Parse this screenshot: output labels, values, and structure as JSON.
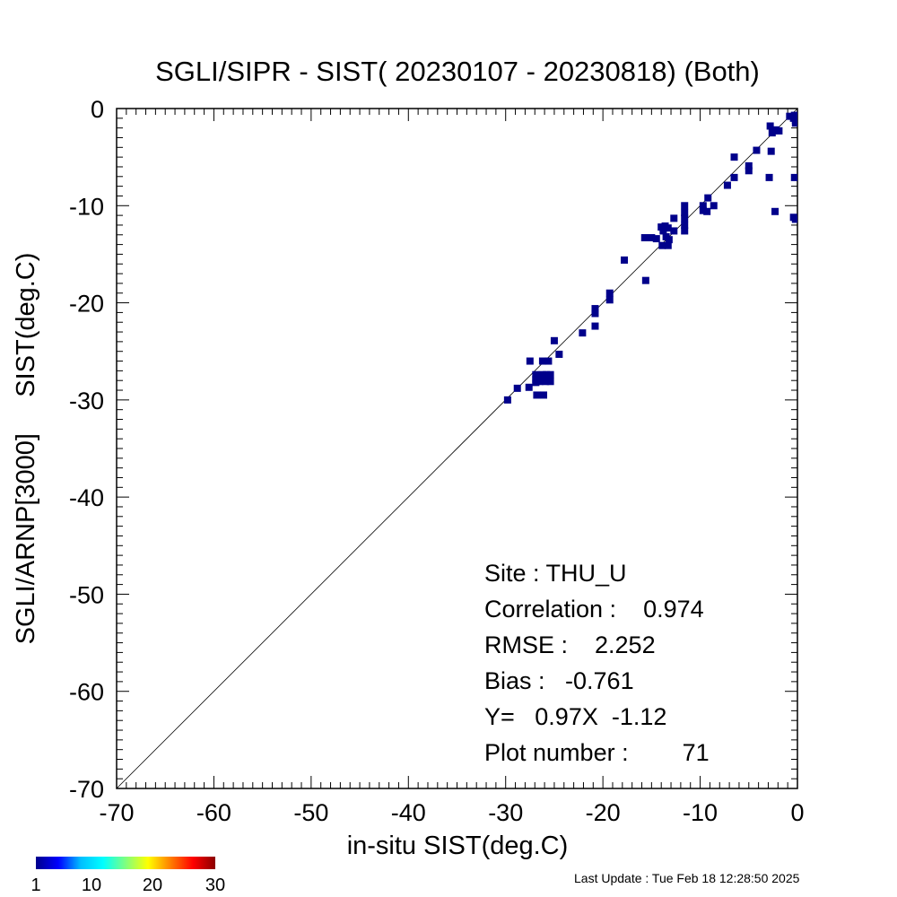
{
  "chart_data": {
    "type": "scatter",
    "title": "SGLI/SIPR - SIST( 20230107 - 20230818) (Both)",
    "xlabel": "in-situ SIST(deg.C)",
    "ylabel": "SGLI/ARNP[3000]     SIST(deg.C)",
    "xlim": [
      -70,
      0
    ],
    "ylim": [
      -70,
      0
    ],
    "x_ticks": [
      -70,
      -60,
      -50,
      -40,
      -30,
      -20,
      -10,
      0
    ],
    "y_ticks": [
      0,
      -10,
      -20,
      -30,
      -40,
      -50,
      -60,
      -70
    ],
    "x_tick_labels": [
      "-70",
      "-60",
      "-50",
      "-40",
      "-30",
      "-20",
      "-10",
      "0"
    ],
    "y_tick_labels": [
      "0",
      "-10",
      "-20",
      "-30",
      "-40",
      "-50",
      "-60",
      "-70"
    ],
    "grid": false,
    "reference_line": "y = x",
    "point_color": "#00008b",
    "points": [
      {
        "x": -29.8,
        "y": -30.0
      },
      {
        "x": -28.8,
        "y": -28.8
      },
      {
        "x": -27.6,
        "y": -28.7
      },
      {
        "x": -27.5,
        "y": -26.0
      },
      {
        "x": -26.9,
        "y": -27.4
      },
      {
        "x": -26.9,
        "y": -28.2
      },
      {
        "x": -26.8,
        "y": -29.5
      },
      {
        "x": -26.5,
        "y": -28.1
      },
      {
        "x": -26.2,
        "y": -26.0
      },
      {
        "x": -26.1,
        "y": -29.5
      },
      {
        "x": -25.9,
        "y": -28.1
      },
      {
        "x": -25.8,
        "y": -27.4
      },
      {
        "x": -25.6,
        "y": -26.0
      },
      {
        "x": -25.4,
        "y": -27.4
      },
      {
        "x": -25.4,
        "y": -28.1
      },
      {
        "x": -25.0,
        "y": -23.9
      },
      {
        "x": -24.5,
        "y": -25.3
      },
      {
        "x": -22.1,
        "y": -23.1
      },
      {
        "x": -20.8,
        "y": -20.6
      },
      {
        "x": -20.8,
        "y": -21.1
      },
      {
        "x": -20.8,
        "y": -22.4
      },
      {
        "x": -19.3,
        "y": -19.0
      },
      {
        "x": -19.3,
        "y": -19.7
      },
      {
        "x": -17.8,
        "y": -15.6
      },
      {
        "x": -15.7,
        "y": -13.3
      },
      {
        "x": -15.6,
        "y": -17.7
      },
      {
        "x": -15.0,
        "y": -13.3
      },
      {
        "x": -14.5,
        "y": -13.4
      },
      {
        "x": -14.0,
        "y": -12.2
      },
      {
        "x": -13.9,
        "y": -14.1
      },
      {
        "x": -13.6,
        "y": -12.1
      },
      {
        "x": -13.5,
        "y": -13.2
      },
      {
        "x": -13.3,
        "y": -14.1
      },
      {
        "x": -13.3,
        "y": -12.3
      },
      {
        "x": -13.2,
        "y": -13.5
      },
      {
        "x": -12.7,
        "y": -11.3
      },
      {
        "x": -12.7,
        "y": -12.6
      },
      {
        "x": -11.6,
        "y": -10.0
      },
      {
        "x": -11.6,
        "y": -10.7
      },
      {
        "x": -11.6,
        "y": -11.3
      },
      {
        "x": -11.6,
        "y": -12.0
      },
      {
        "x": -11.6,
        "y": -12.6
      },
      {
        "x": -9.7,
        "y": -10.5
      },
      {
        "x": -9.7,
        "y": -10.0
      },
      {
        "x": -9.3,
        "y": -10.6
      },
      {
        "x": -9.2,
        "y": -9.2
      },
      {
        "x": -8.6,
        "y": -10.0
      },
      {
        "x": -7.2,
        "y": -7.9
      },
      {
        "x": -6.5,
        "y": -7.1
      },
      {
        "x": -6.5,
        "y": -5.0
      },
      {
        "x": -5.0,
        "y": -5.9
      },
      {
        "x": -5.0,
        "y": -6.4
      },
      {
        "x": -4.2,
        "y": -4.3
      },
      {
        "x": -2.9,
        "y": -7.1
      },
      {
        "x": -2.8,
        "y": -1.8
      },
      {
        "x": -2.7,
        "y": -4.4
      },
      {
        "x": -2.6,
        "y": -2.5
      },
      {
        "x": -2.3,
        "y": -10.6
      },
      {
        "x": -2.2,
        "y": -2.2
      },
      {
        "x": -1.9,
        "y": -2.3
      },
      {
        "x": -0.8,
        "y": -0.8
      },
      {
        "x": -0.4,
        "y": -11.2
      },
      {
        "x": -0.3,
        "y": -0.7
      },
      {
        "x": -0.3,
        "y": -7.1
      },
      {
        "x": -0.2,
        "y": -1.2
      },
      {
        "x": -0.2,
        "y": -1.5
      },
      {
        "x": -0.2,
        "y": -11.4
      },
      {
        "x": -0.4,
        "y": -1.0
      },
      {
        "x": -26.2,
        "y": -27.4
      },
      {
        "x": -13.8,
        "y": -12.6
      },
      {
        "x": -26.9,
        "y": -27.9
      }
    ],
    "colorbar": {
      "ticks": [
        "1",
        "10",
        "20",
        "30"
      ],
      "colors": [
        "#00008b",
        "#0000ff",
        "#00bfff",
        "#00ffff",
        "#7fff7f",
        "#ffff00",
        "#ff7f00",
        "#ff0000",
        "#8b0000"
      ]
    },
    "annotations": {
      "site": "Site : THU_U",
      "correlation": "Correlation :    0.974",
      "rmse": "RMSE :    2.252",
      "bias": "Bias :   -0.761",
      "regression": "Y=   0.97X  -1.12",
      "plot_number": "Plot number :        71"
    }
  },
  "footer": {
    "last_update": "Last Update : Tue Feb 18 12:28:50 2025"
  }
}
